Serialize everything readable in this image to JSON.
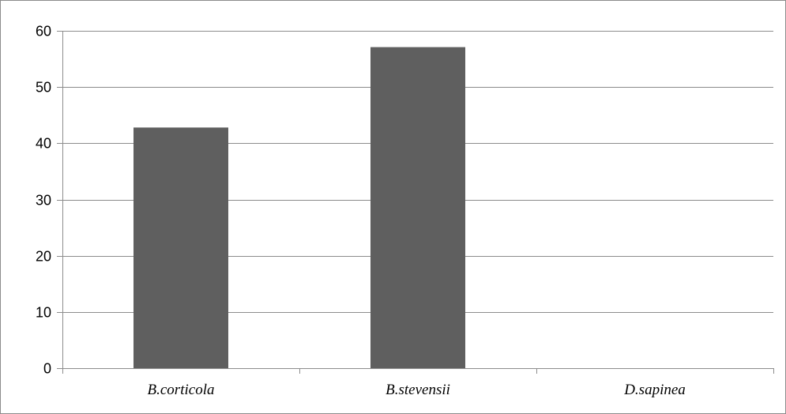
{
  "chart_data": {
    "type": "bar",
    "title": "",
    "xlabel": "",
    "ylabel": "",
    "categories": [
      "B.corticola",
      "B.stevensii",
      "D.sapinea"
    ],
    "values": [
      42.8,
      57.1,
      0
    ],
    "ylim": [
      0,
      60
    ],
    "yticks": [
      0,
      10,
      20,
      30,
      40,
      50,
      60
    ],
    "grid": true,
    "legend": "none",
    "bar_color": "#5f5f5f"
  }
}
